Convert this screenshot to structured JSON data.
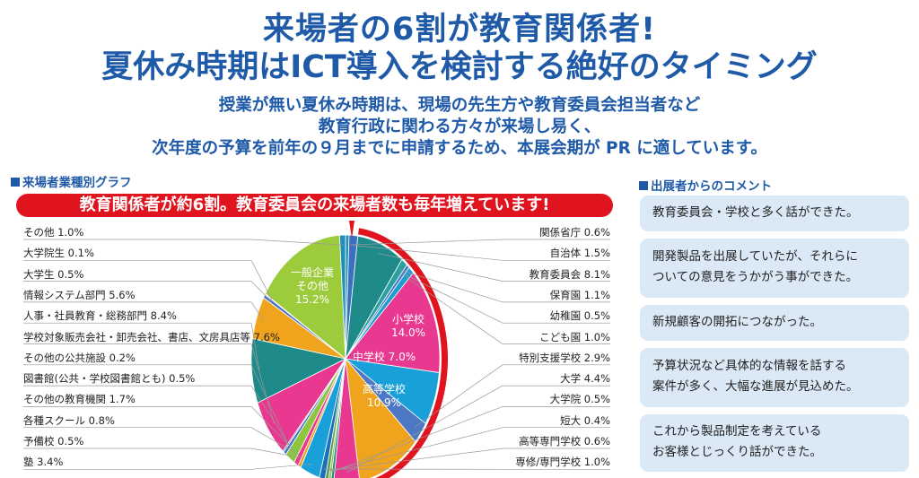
{
  "headline": {
    "line1": "来場者の6割が教育関係者!",
    "line2": "夏休み時期はICT導入を検討する絶好のタイミング"
  },
  "subtext": {
    "line1": "授業が無い夏休み時期は、現場の先生方や教育委員会担当者など",
    "line2": "教育行政に関わる方々が来場し易く、",
    "line3": "次年度の予算を前年の９月までに申請するため、本展会期が PR に適しています。"
  },
  "chart_section": {
    "title": "来場者業種別グラフ"
  },
  "banner": {
    "text": "教育関係者が約6割。教育委員会の来場者数も毎年増えています!"
  },
  "comments_section": {
    "title": "出展者からのコメント",
    "items": [
      {
        "line1": "教育委員会・学校と多く話ができた。",
        "line2": ""
      },
      {
        "line1": "開発製品を出展していたが、それらに",
        "line2": "ついての意見をうかがう事ができた。"
      },
      {
        "line1": "新規顧客の開拓につながった。",
        "line2": ""
      },
      {
        "line1": "予算状況など具体的な情報を話する",
        "line2": "案件が多く、大幅な進展が見込めた。"
      },
      {
        "line1": "これから製品制定を考えている",
        "line2": "お客様とじっくり話ができた。"
      }
    ]
  },
  "chart_data": {
    "type": "pie",
    "unit": "%",
    "slices": [
      {
        "label": "関係省庁",
        "value": 0.6,
        "display": "関係省庁 0.6%",
        "color": "#1f8fb8"
      },
      {
        "label": "自治体",
        "value": 1.5,
        "display": "自治体 1.5%",
        "color": "#3b6fc0"
      },
      {
        "label": "教育委員会",
        "value": 8.1,
        "display": "教育委員会 8.1%",
        "color": "#1f8a8a"
      },
      {
        "label": "保育園",
        "value": 1.1,
        "display": "保育園 1.1%",
        "color": "#2aa0a0"
      },
      {
        "label": "幼稚園",
        "value": 0.5,
        "display": "幼稚園 0.5%",
        "color": "#4a74c7"
      },
      {
        "label": "こども園",
        "value": 1.0,
        "display": "こども園 1.0%",
        "color": "#1c9fd0"
      },
      {
        "label": "小学校",
        "value": 14.0,
        "display": "小学校 14.0%",
        "color": "#e8388f",
        "inner": [
          "小学校",
          "14.0%"
        ]
      },
      {
        "label": "中学校",
        "value": 7.0,
        "display": "中学校 7.0%",
        "color": "#1aa0d8",
        "inner": [
          "中学校 7.0%"
        ]
      },
      {
        "label": "特別支援学校",
        "value": 2.9,
        "display": "特別支援学校 2.9%",
        "color": "#4f78c4"
      },
      {
        "label": "高等学校",
        "value": 10.9,
        "display": "高等学校 10.9%",
        "color": "#f0a41e",
        "inner": [
          "高等学校",
          "10.9%"
        ]
      },
      {
        "label": "大学",
        "value": 4.4,
        "display": "大学 4.4%",
        "color": "#e8388f"
      },
      {
        "label": "大学院",
        "value": 0.5,
        "display": "大学院 0.5%",
        "color": "#1f8a8a"
      },
      {
        "label": "短大",
        "value": 0.4,
        "display": "短大 0.4%",
        "color": "#8cc63e"
      },
      {
        "label": "高等専門学校",
        "value": 0.6,
        "display": "高等専門学校 0.6%",
        "color": "#5aa05a"
      },
      {
        "label": "専修/専門学校",
        "value": 1.0,
        "display": "専修/専門学校 1.0%",
        "color": "#1c6fb8"
      },
      {
        "label": "塾",
        "value": 3.4,
        "display": "塾 3.4%",
        "color": "#1aa0d8"
      },
      {
        "label": "予備校",
        "value": 0.5,
        "display": "予備校 0.5%",
        "color": "#f0a41e"
      },
      {
        "label": "各種スクール",
        "value": 0.8,
        "display": "各種スクール 0.8%",
        "color": "#e8388f"
      },
      {
        "label": "その他の教育機関",
        "value": 1.7,
        "display": "その他の教育機関 1.7%",
        "color": "#8cc63e"
      },
      {
        "label": "図書館(公共・学校図書館とも)",
        "value": 0.5,
        "display": "図書館(公共・学校図書館とも) 0.5%",
        "color": "#4a74c7"
      },
      {
        "label": "その他の公共施設",
        "value": 0.2,
        "display": "その他の公共施設 0.2%",
        "color": "#1f8a8a"
      },
      {
        "label": "学校対象販売会社・卸売会社、書店、文房具店等",
        "value": 7.6,
        "display": "学校対象販売会社・卸売会社、書店、文房具店等 7.6%",
        "color": "#e8388f"
      },
      {
        "label": "人事・社員教育・総務部門",
        "value": 8.4,
        "display": "人事・社員教育・総務部門 8.4%",
        "color": "#1f8a8a"
      },
      {
        "label": "情報システム部門",
        "value": 5.6,
        "display": "情報システム部門 5.6%",
        "color": "#f0a41e"
      },
      {
        "label": "大学生",
        "value": 0.5,
        "display": "大学生 0.5%",
        "color": "#4a74c7"
      },
      {
        "label": "大学院生",
        "value": 0.1,
        "display": "大学院生 0.1%",
        "color": "#e8388f"
      },
      {
        "label": "一般企業その他",
        "value": 15.2,
        "display": "",
        "color": "#9ccc3c",
        "inner": [
          "一般企業",
          "その他",
          "15.2%"
        ]
      },
      {
        "label": "その他",
        "value": 1.0,
        "display": "その他 1.0%",
        "color": "#1f8fb8"
      }
    ]
  }
}
